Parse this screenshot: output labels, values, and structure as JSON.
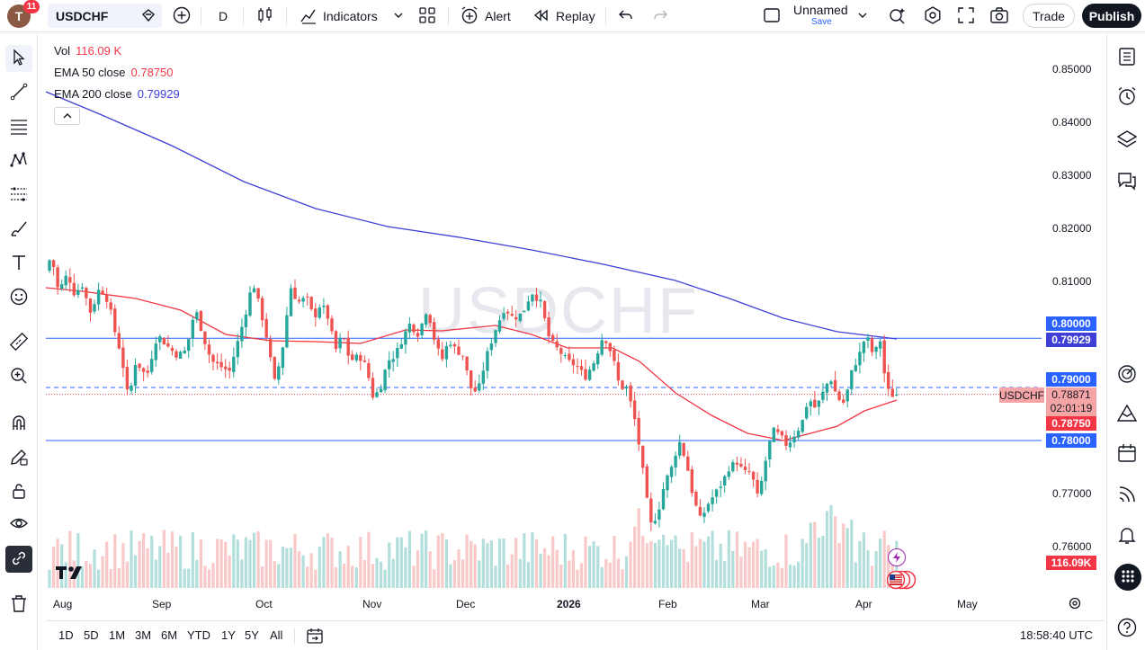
{
  "toolbar": {
    "avatar_letter": "T",
    "notification_count": "11",
    "symbol": "USDCHF",
    "interval": "D",
    "indicators_label": "Indicators",
    "alert_label": "Alert",
    "replay_label": "Replay",
    "layout_name": "Unnamed",
    "layout_save": "Save",
    "trade_label": "Trade",
    "publish_label": "Publish"
  },
  "legend": {
    "vol_label": "Vol",
    "vol_value": "116.09 K",
    "ema50_label": "EMA 50 close",
    "ema50_value": "0.78750",
    "ema200_label": "EMA 200 close",
    "ema200_value": "0.79929"
  },
  "watermark": "USDCHF",
  "price_axis": {
    "ticks": [
      "0.85000",
      "0.84000",
      "0.83000",
      "0.82000",
      "0.81000",
      "0.77000",
      "0.76000"
    ],
    "labels": {
      "p80000": "0.80000",
      "p79929": "0.79929",
      "p79000": "0.79000",
      "p78871": "0.78871",
      "countdown": "02:01:19",
      "p78750": "0.78750",
      "p78000": "0.78000",
      "vol": "116.09K",
      "symbol_tag": "USDCHF"
    }
  },
  "time_axis": [
    "Aug",
    "Sep",
    "Oct",
    "Nov",
    "Dec",
    "2026",
    "Feb",
    "Mar",
    "Apr",
    "May"
  ],
  "bottombar": {
    "ranges": [
      "1D",
      "5D",
      "1M",
      "3M",
      "6M",
      "YTD",
      "1Y",
      "5Y",
      "All"
    ],
    "clock": "18:58:40 UTC"
  },
  "colors": {
    "up": "#26a69a",
    "down": "#ef5350",
    "ema50": "#f23645",
    "ema200": "#3f3fd8",
    "hline": "#2962ff"
  }
}
